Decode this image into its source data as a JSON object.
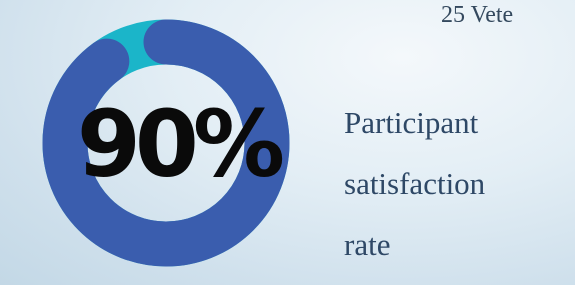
{
  "top_text": "25 Vete",
  "stat": {
    "value": 90,
    "label": "90%"
  },
  "description": [
    "Participant",
    "satisfaction",
    "rate"
  ]
}
